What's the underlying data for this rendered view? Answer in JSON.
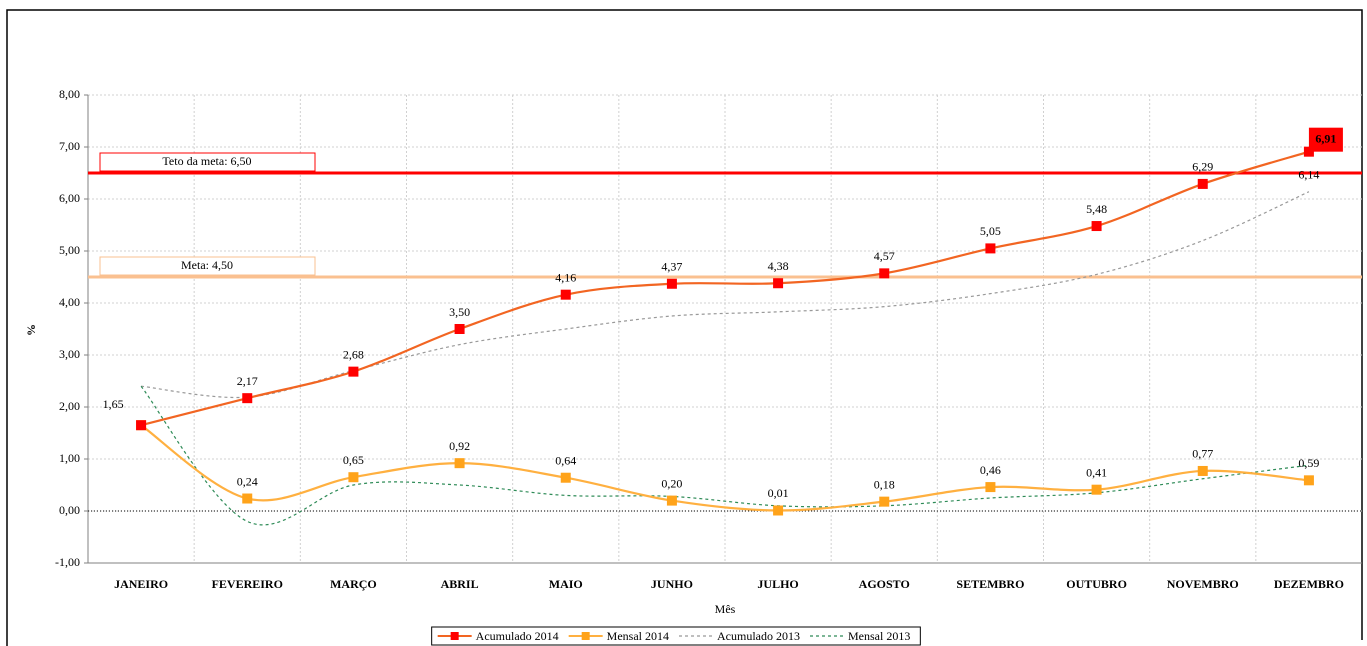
{
  "chart_data": {
    "type": "line",
    "x_label": "Mês",
    "y_label": "%",
    "categories": [
      "JANEIRO",
      "FEVEREIRO",
      "MARÇO",
      "ABRIL",
      "MAIO",
      "JUNHO",
      "JULHO",
      "AGOSTO",
      "SETEMBRO",
      "OUTUBRO",
      "NOVEMBRO",
      "DEZEMBRO"
    ],
    "ylim": [
      -1,
      8
    ],
    "yticks": [
      {
        "value": -1,
        "label": "-1,00"
      },
      {
        "value": 0,
        "label": "0,00"
      },
      {
        "value": 1,
        "label": "1,00"
      },
      {
        "value": 2,
        "label": "2,00"
      },
      {
        "value": 3,
        "label": "3,00"
      },
      {
        "value": 4,
        "label": "4,00"
      },
      {
        "value": 5,
        "label": "5,00"
      },
      {
        "value": 6,
        "label": "6,00"
      },
      {
        "value": 7,
        "label": "7,00"
      },
      {
        "value": 8,
        "label": "8,00"
      }
    ],
    "grid": true,
    "legend": "bottom",
    "reference_lines": [
      {
        "value": 6.5,
        "label": "Teto da meta: 6,50",
        "color": "#ff0000"
      },
      {
        "value": 4.5,
        "label": "Meta: 4,50",
        "color": "#fac090"
      }
    ],
    "series": [
      {
        "name": "Acumulado 2014",
        "color": "#f26522",
        "marker_color": "#ff0000",
        "style": "solid",
        "marker": true,
        "highlight_last": true,
        "values": [
          1.65,
          2.17,
          2.68,
          3.5,
          4.16,
          4.37,
          4.38,
          4.57,
          5.05,
          5.48,
          6.29,
          6.91
        ],
        "value_labels": [
          "1,65",
          "2,17",
          "2,68",
          "3,50",
          "4,16",
          "4,37",
          "4,38",
          "4,57",
          "5,05",
          "5,48",
          "6,29",
          "6,91"
        ]
      },
      {
        "name": "Mensal 2014",
        "color": "#ffb040",
        "marker_color": "#ffa31a",
        "style": "solid",
        "marker": true,
        "values": [
          1.65,
          0.24,
          0.65,
          0.92,
          0.64,
          0.2,
          0.01,
          0.18,
          0.46,
          0.41,
          0.77,
          0.59
        ],
        "value_labels": [
          null,
          "0,24",
          "0,65",
          "0,92",
          "0,64",
          "0,20",
          "0,01",
          "0,18",
          "0,46",
          "0,41",
          "0,77",
          "0,59"
        ]
      },
      {
        "name": "Acumulado 2013",
        "color": "#999999",
        "style": "dashed",
        "marker": false,
        "values": [
          2.4,
          2.19,
          2.7,
          3.2,
          3.5,
          3.75,
          3.83,
          3.93,
          4.18,
          4.55,
          5.2,
          6.14
        ],
        "value_labels": [
          null,
          null,
          null,
          null,
          null,
          null,
          null,
          null,
          null,
          null,
          null,
          "6,14"
        ]
      },
      {
        "name": "Mensal 2013",
        "color": "#2e8b57",
        "style": "dashed",
        "marker": false,
        "values": [
          2.4,
          -0.2,
          0.5,
          0.5,
          0.3,
          0.28,
          0.1,
          0.1,
          0.25,
          0.35,
          0.62,
          0.88
        ]
      }
    ]
  }
}
